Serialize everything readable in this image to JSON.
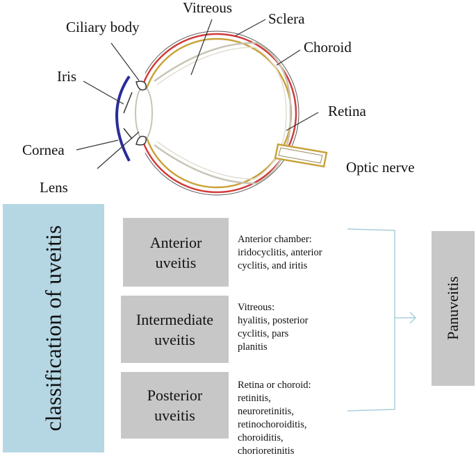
{
  "eye_labels": {
    "vitreous": "Vitreous",
    "sclera": "Sclera",
    "ciliary_body": "Ciliary body",
    "choroid": "Choroid",
    "iris": "Iris",
    "retina": "Retina",
    "cornea": "Cornea",
    "optic_nerve": "Optic nerve",
    "lens": "Lens"
  },
  "classification": {
    "title": "classification of uveitis",
    "types": [
      {
        "name": "Anterior\nuveitis",
        "description": "Anterior chamber:\niridocyclitis, anterior\ncyclitis, and iritis"
      },
      {
        "name": "Intermediate\nuveitis",
        "description": "Vitreous:\nhyalitis, posterior\ncyclitis, pars\nplanitis"
      },
      {
        "name": "Posterior\nuveitis",
        "description": "Retina or choroid:\nretinitis,\nneuroretinitis,\nretinochoroiditis,\nchoroiditis,\nchorioretinitis"
      }
    ],
    "panuveitis": "Panuveitis"
  },
  "colors": {
    "classification_box": "#b5d7e4",
    "type_box": "#c7c7c7",
    "bracket": "#a9cfdc",
    "sclera_line": "#d23a3a",
    "choroid_line": "#c9a23a",
    "cornea": "#2a2c9a",
    "lens": "#c8c4b4"
  }
}
